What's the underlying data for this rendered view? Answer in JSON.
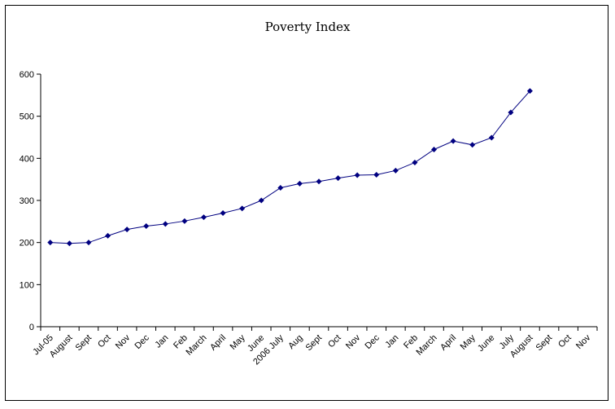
{
  "colors": {
    "line": "#000080",
    "marker": "#000080",
    "axis": "#000000"
  },
  "chart_data": {
    "type": "line",
    "title": "Poverty Index",
    "xlabel": "",
    "ylabel": "",
    "ylim": [
      0,
      600
    ],
    "yticks": [
      0,
      100,
      200,
      300,
      400,
      500,
      600
    ],
    "grid": false,
    "legend": "none",
    "categories": [
      "Jul-05",
      "August",
      "Sept",
      "Oct",
      "Nov",
      "Dec",
      "Jan",
      "Feb",
      "March",
      "April",
      "May",
      "June",
      "2006 July",
      "Aug",
      "Sept",
      "Oct",
      "Nov",
      "Dec",
      "Jan",
      "Feb",
      "March",
      "April",
      "May",
      "June",
      "July",
      "August",
      "Sept",
      "Oct",
      "Nov"
    ],
    "series": [
      {
        "values": [
          200,
          198,
          200,
          216,
          231,
          239,
          244,
          251,
          260,
          270,
          281,
          300,
          330,
          340,
          345,
          353,
          360,
          361,
          371,
          390,
          421,
          441,
          432,
          449,
          509,
          560,
          null,
          null,
          null
        ]
      }
    ]
  }
}
